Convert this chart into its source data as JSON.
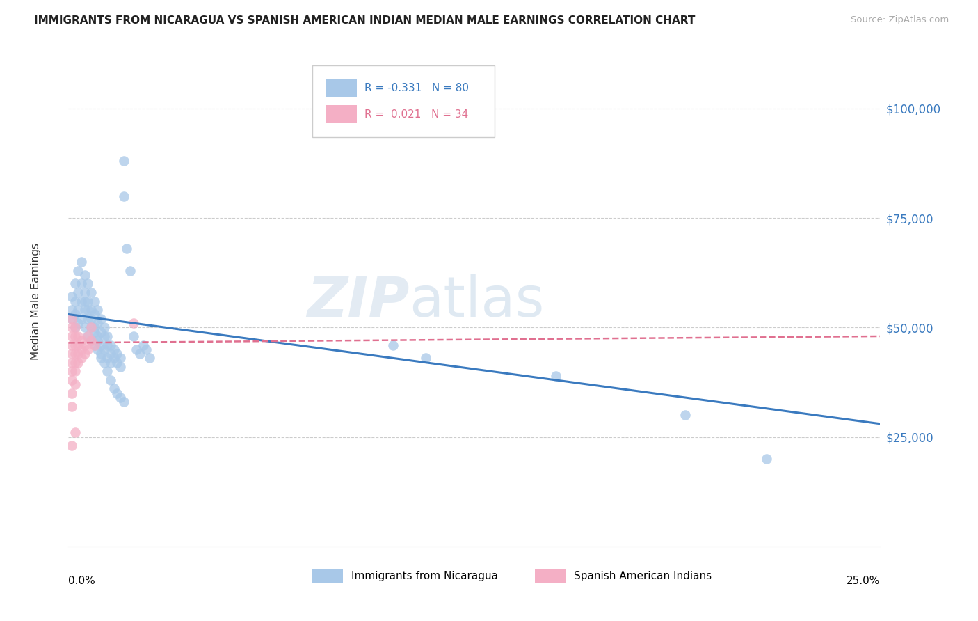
{
  "title": "IMMIGRANTS FROM NICARAGUA VS SPANISH AMERICAN INDIAN MEDIAN MALE EARNINGS CORRELATION CHART",
  "source": "Source: ZipAtlas.com",
  "ylabel": "Median Male Earnings",
  "ytick_labels": [
    "$25,000",
    "$50,000",
    "$75,000",
    "$100,000"
  ],
  "ytick_values": [
    25000,
    50000,
    75000,
    100000
  ],
  "xlim": [
    0.0,
    0.25
  ],
  "ylim": [
    0,
    112000
  ],
  "blue_color": "#a8c8e8",
  "pink_color": "#f4afc5",
  "blue_line_color": "#3a7abf",
  "pink_line_color": "#e07090",
  "blue_points": [
    [
      0.001,
      57000
    ],
    [
      0.001,
      54000
    ],
    [
      0.001,
      52000
    ],
    [
      0.002,
      60000
    ],
    [
      0.002,
      56000
    ],
    [
      0.002,
      53000
    ],
    [
      0.002,
      50000
    ],
    [
      0.003,
      63000
    ],
    [
      0.003,
      58000
    ],
    [
      0.003,
      54000
    ],
    [
      0.003,
      51000
    ],
    [
      0.004,
      65000
    ],
    [
      0.004,
      60000
    ],
    [
      0.004,
      56000
    ],
    [
      0.004,
      52000
    ],
    [
      0.005,
      62000
    ],
    [
      0.005,
      58000
    ],
    [
      0.005,
      54000
    ],
    [
      0.005,
      50000
    ],
    [
      0.006,
      60000
    ],
    [
      0.006,
      56000
    ],
    [
      0.006,
      52000
    ],
    [
      0.006,
      48000
    ],
    [
      0.007,
      58000
    ],
    [
      0.007,
      54000
    ],
    [
      0.007,
      50000
    ],
    [
      0.007,
      47000
    ],
    [
      0.008,
      56000
    ],
    [
      0.008,
      53000
    ],
    [
      0.008,
      49000
    ],
    [
      0.008,
      46000
    ],
    [
      0.009,
      54000
    ],
    [
      0.009,
      51000
    ],
    [
      0.009,
      48000
    ],
    [
      0.009,
      45000
    ],
    [
      0.01,
      52000
    ],
    [
      0.01,
      49000
    ],
    [
      0.01,
      46000
    ],
    [
      0.01,
      43000
    ],
    [
      0.011,
      50000
    ],
    [
      0.011,
      48000
    ],
    [
      0.011,
      45000
    ],
    [
      0.012,
      48000
    ],
    [
      0.012,
      46000
    ],
    [
      0.012,
      43000
    ],
    [
      0.013,
      46000
    ],
    [
      0.013,
      44000
    ],
    [
      0.013,
      42000
    ],
    [
      0.014,
      45000
    ],
    [
      0.014,
      43000
    ],
    [
      0.015,
      44000
    ],
    [
      0.015,
      42000
    ],
    [
      0.016,
      43000
    ],
    [
      0.016,
      41000
    ],
    [
      0.017,
      88000
    ],
    [
      0.017,
      80000
    ],
    [
      0.018,
      68000
    ],
    [
      0.019,
      63000
    ],
    [
      0.02,
      48000
    ],
    [
      0.021,
      45000
    ],
    [
      0.022,
      44000
    ],
    [
      0.023,
      46000
    ],
    [
      0.024,
      45000
    ],
    [
      0.025,
      43000
    ],
    [
      0.005,
      56000
    ],
    [
      0.006,
      54000
    ],
    [
      0.007,
      52000
    ],
    [
      0.008,
      50000
    ],
    [
      0.009,
      47000
    ],
    [
      0.01,
      44000
    ],
    [
      0.011,
      42000
    ],
    [
      0.012,
      40000
    ],
    [
      0.013,
      38000
    ],
    [
      0.014,
      36000
    ],
    [
      0.015,
      35000
    ],
    [
      0.016,
      34000
    ],
    [
      0.017,
      33000
    ],
    [
      0.1,
      46000
    ],
    [
      0.11,
      43000
    ],
    [
      0.15,
      39000
    ],
    [
      0.19,
      30000
    ],
    [
      0.215,
      20000
    ]
  ],
  "pink_points": [
    [
      0.001,
      52000
    ],
    [
      0.001,
      50000
    ],
    [
      0.001,
      48000
    ],
    [
      0.001,
      46000
    ],
    [
      0.001,
      44000
    ],
    [
      0.001,
      42000
    ],
    [
      0.001,
      40000
    ],
    [
      0.001,
      38000
    ],
    [
      0.001,
      35000
    ],
    [
      0.001,
      32000
    ],
    [
      0.002,
      50000
    ],
    [
      0.002,
      48000
    ],
    [
      0.002,
      46000
    ],
    [
      0.002,
      44000
    ],
    [
      0.002,
      42000
    ],
    [
      0.002,
      40000
    ],
    [
      0.002,
      37000
    ],
    [
      0.003,
      48000
    ],
    [
      0.003,
      46000
    ],
    [
      0.003,
      44000
    ],
    [
      0.003,
      42000
    ],
    [
      0.004,
      47000
    ],
    [
      0.004,
      45000
    ],
    [
      0.004,
      43000
    ],
    [
      0.005,
      46000
    ],
    [
      0.005,
      44000
    ],
    [
      0.006,
      48000
    ],
    [
      0.006,
      45000
    ],
    [
      0.007,
      50000
    ],
    [
      0.007,
      47000
    ],
    [
      0.001,
      23000
    ],
    [
      0.002,
      26000
    ],
    [
      0.02,
      51000
    ],
    [
      0.008,
      46000
    ]
  ]
}
